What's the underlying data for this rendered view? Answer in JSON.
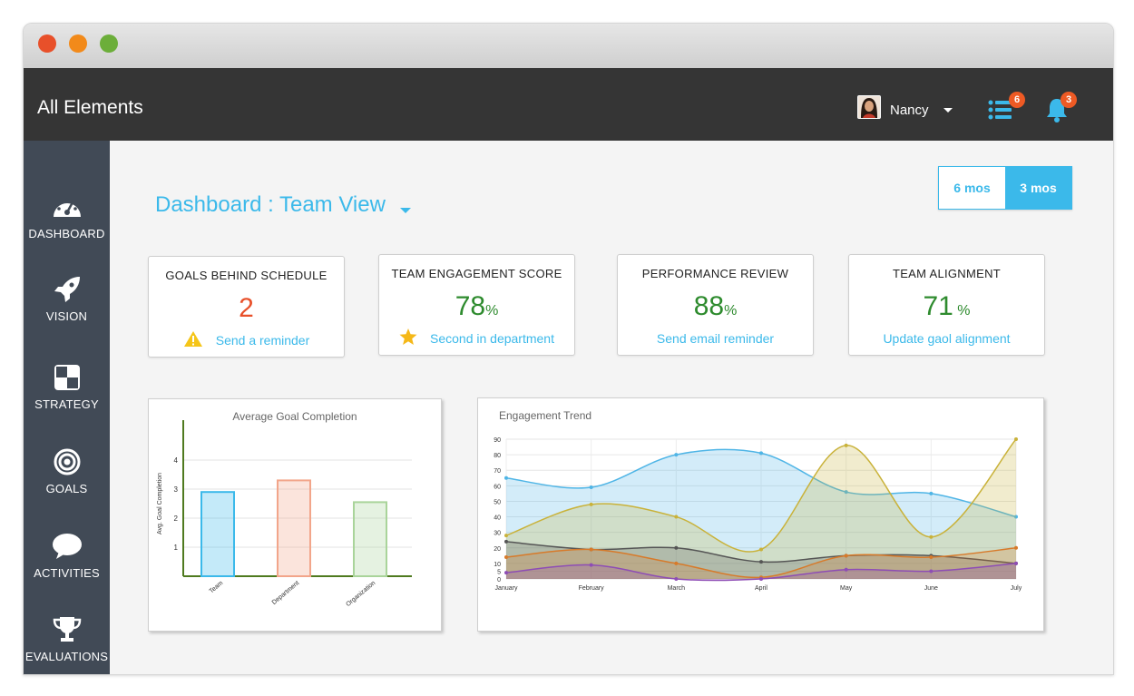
{
  "app": {
    "title": "All Elements"
  },
  "user": {
    "name": "Nancy"
  },
  "header": {
    "list_badge": "6",
    "bell_badge": "3"
  },
  "sidebar": {
    "items": [
      {
        "label": "DASHBOARD",
        "icon": "dashboard-icon"
      },
      {
        "label": "VISION",
        "icon": "rocket-icon"
      },
      {
        "label": "STRATEGY",
        "icon": "strategy-icon"
      },
      {
        "label": "GOALS",
        "icon": "target-icon"
      },
      {
        "label": "ACTIVITIES",
        "icon": "chat-bubble-icon"
      },
      {
        "label": "EVALUATIONS",
        "icon": "trophy-icon"
      }
    ]
  },
  "page": {
    "title": "Dashboard : Team View"
  },
  "range": {
    "option1": "6 mos",
    "option2": "3 mos",
    "selected": "3 mos"
  },
  "cards": [
    {
      "title": "GOALS BEHIND SCHEDULE",
      "value": "2",
      "unit": "",
      "color": "#e8502a",
      "link": "Send a reminder",
      "icon": "warning-icon"
    },
    {
      "title": "TEAM ENGAGEMENT SCORE",
      "value": "78",
      "unit": "%",
      "color": "#2e8b2e",
      "link": "Second in department",
      "icon": "star-icon"
    },
    {
      "title": "PERFORMANCE REVIEW",
      "value": "88",
      "unit": "%",
      "color": "#2e8b2e",
      "link": "Send email reminder",
      "icon": ""
    },
    {
      "title": "TEAM ALIGNMENT",
      "value": "71",
      "unit": " %",
      "color": "#2e8b2e",
      "link": "Update gaol alignment",
      "icon": ""
    }
  ],
  "colors": {
    "accent": "#3bb9ea",
    "sidebar": "#414a56",
    "appbar": "#353535",
    "alert": "#e8502a",
    "positive": "#2e8b2e"
  },
  "chart_data": [
    {
      "type": "bar",
      "title": "Average Goal Completion",
      "ylabel": "Avg. Goal Completion",
      "xlabel": "",
      "categories": [
        "Team",
        "Department",
        "Organization"
      ],
      "values": [
        2.9,
        3.3,
        2.55
      ],
      "colors": [
        "#3bb9ea",
        "#f2a58a",
        "#a9d49a"
      ],
      "ylim": [
        0,
        5
      ],
      "yticks": [
        1,
        2,
        3,
        4
      ],
      "grid": true
    },
    {
      "type": "area",
      "title": "Engagement Trend",
      "categories": [
        "January",
        "February",
        "March",
        "April",
        "May",
        "June",
        "July"
      ],
      "ylim": [
        0,
        90
      ],
      "yticks": [
        0,
        5,
        10,
        20,
        30,
        40,
        50,
        60,
        70,
        80,
        90
      ],
      "grid": true,
      "series": [
        {
          "values": [
            65,
            59,
            80,
            81,
            56,
            55,
            40
          ],
          "color": "#4fb5e6"
        },
        {
          "values": [
            28,
            48,
            40,
            19,
            86,
            27,
            90
          ],
          "color": "#c9b23a"
        },
        {
          "values": [
            24,
            19,
            20,
            11,
            15,
            15,
            10
          ],
          "color": "#555555"
        },
        {
          "values": [
            14,
            19,
            10,
            1,
            15,
            14,
            20
          ],
          "color": "#d77a2a"
        },
        {
          "values": [
            4,
            9,
            0,
            0,
            6,
            5,
            10
          ],
          "color": "#8e4db5"
        }
      ]
    }
  ]
}
